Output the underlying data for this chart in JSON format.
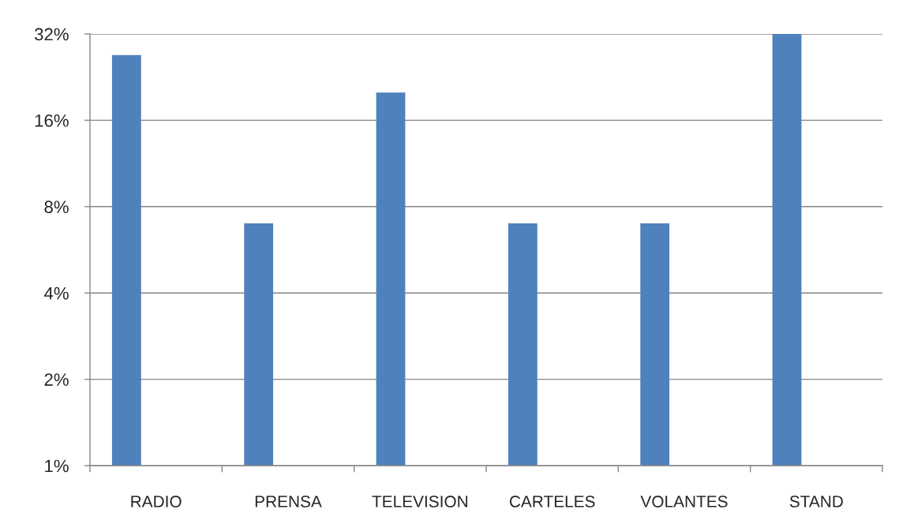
{
  "chart_data": {
    "type": "bar",
    "categories": [
      "RADIO",
      "PRENSA",
      "TELEVISION",
      "CARTELES",
      "VOLANTES",
      "STAND"
    ],
    "values": [
      27,
      7,
      20,
      7,
      7,
      32
    ],
    "color": "#4f81bd",
    "log": "y",
    "ylim": [
      1,
      32
    ],
    "yticks": [
      {
        "value": 1,
        "label": "1%"
      },
      {
        "value": 2,
        "label": "2%"
      },
      {
        "value": 4,
        "label": "4%"
      },
      {
        "value": 8,
        "label": "8%"
      },
      {
        "value": 16,
        "label": "16%"
      },
      {
        "value": 32,
        "label": "32%"
      }
    ],
    "grid": "y"
  }
}
